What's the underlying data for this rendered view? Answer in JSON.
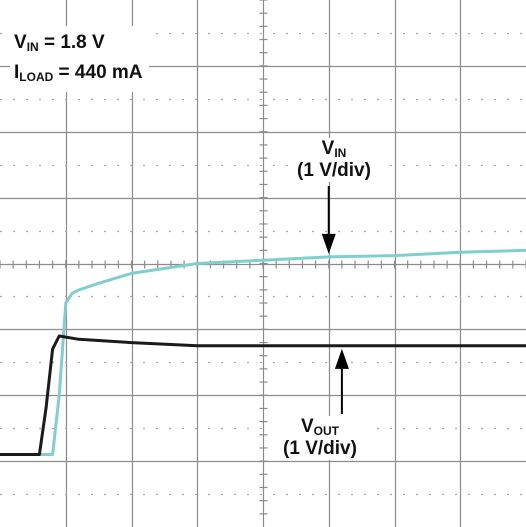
{
  "conditions": {
    "vin_symbol": "V",
    "vin_subscript": "IN",
    "vin_value": " = 1.8 V",
    "iload_symbol": "I",
    "iload_subscript": "LOAD",
    "iload_value": " = 440 mA"
  },
  "annotations": {
    "vin_symbol": "V",
    "vin_subscript": "IN",
    "vin_scale": "(1 V/div)",
    "vout_symbol": "V",
    "vout_subscript": "OUT",
    "vout_scale": "(1 V/div)"
  },
  "colors": {
    "background": "#ffffff",
    "grid": "#8c8c8c",
    "vin_trace": "#7fcfcf",
    "vout_trace": "#1a1a1a",
    "arrow": "#000000"
  },
  "chart_data": {
    "type": "line",
    "title": "",
    "xlabel": "",
    "ylabel": "",
    "grid": true,
    "x_divisions": 8,
    "y_divisions": 8,
    "xlim": [
      0,
      8
    ],
    "ylim": [
      -4,
      4
    ],
    "y_unit_per_div": "1 V/div",
    "series": [
      {
        "name": "VIN",
        "color": "#7fcfcf",
        "x": [
          0,
          0.8,
          0.9,
          1.0,
          1.1,
          1.2,
          1.5,
          2.0,
          3.0,
          4.0,
          5.0,
          6.0,
          7.0,
          8.0
        ],
        "y": [
          -2.9,
          -2.9,
          -2.0,
          -0.6,
          -0.45,
          -0.4,
          -0.3,
          -0.15,
          0.0,
          0.05,
          0.1,
          0.12,
          0.17,
          0.2
        ]
      },
      {
        "name": "VOUT",
        "color": "#1a1a1a",
        "x": [
          0,
          0.6,
          0.7,
          0.8,
          0.9,
          1.2,
          2.0,
          3.0,
          4.0,
          5.0,
          6.0,
          7.0,
          8.0
        ],
        "y": [
          -2.9,
          -2.9,
          -2.2,
          -1.3,
          -1.1,
          -1.15,
          -1.2,
          -1.25,
          -1.25,
          -1.25,
          -1.25,
          -1.25,
          -1.25
        ]
      }
    ],
    "annotations": [
      {
        "label": "VIN (1 V/div)",
        "arrow_to_series": "VIN",
        "arrow_x": 5.0
      },
      {
        "label": "VOUT (1 V/div)",
        "arrow_to_series": "VOUT",
        "arrow_x": 5.2
      }
    ]
  }
}
